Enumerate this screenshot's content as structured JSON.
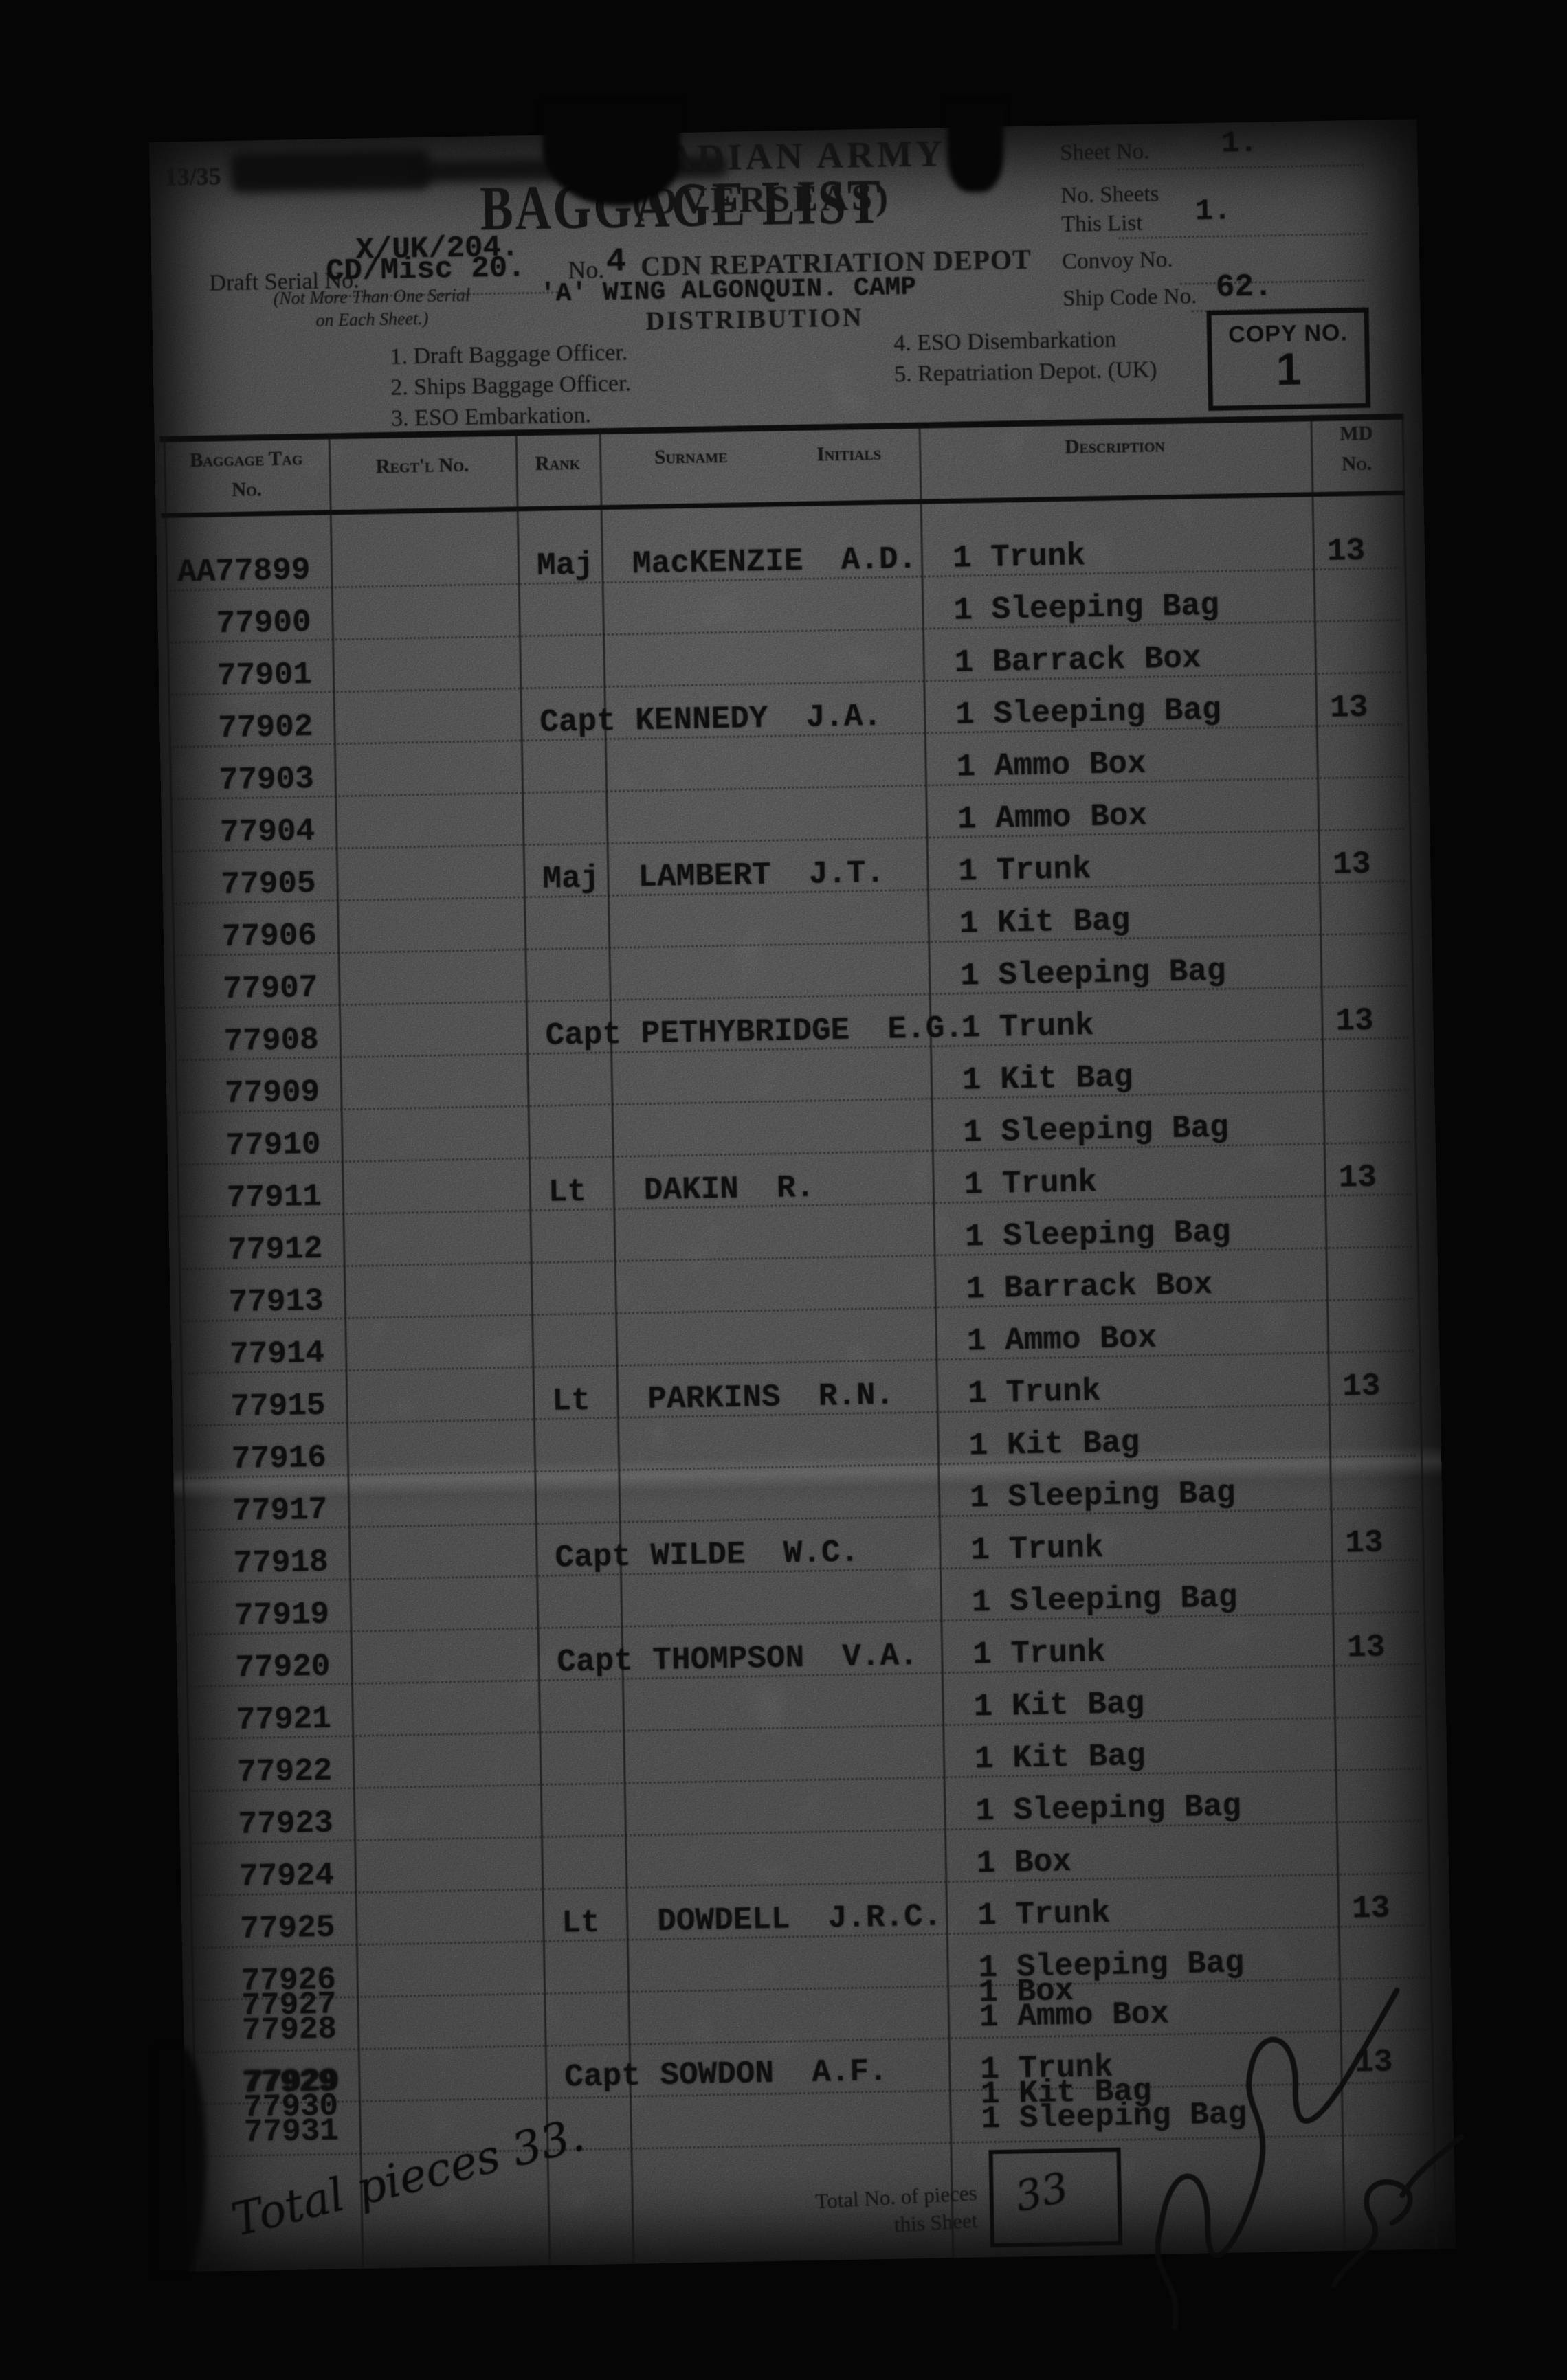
{
  "page": {
    "scan_label": "13/35",
    "colors": {
      "paper": "#8e8e8e",
      "ink": "#111111",
      "background": "#050505"
    },
    "header": {
      "army_title": "CANADIAN ARMY (OVERSEAS)",
      "form_title": "BAGGAGE LIST",
      "file_ref": "X/UK/204.",
      "draft_serial_label": "Draft Serial No.",
      "draft_serial_value": "CD/Misc 20.",
      "serial_note_1": "(Not More Than One Serial",
      "serial_note_2": "on Each Sheet.)",
      "unit_no_label": "No.",
      "unit_no_value": "4",
      "unit_name": "CDN REPATRIATION DEPOT",
      "unit_wing": "'A' WING ALGONQUIN. CAMP",
      "distribution_heading": "DISTRIBUTION",
      "sheet_no_label": "Sheet No.",
      "sheet_no_value": "1.",
      "no_sheets_label_1": "No. Sheets",
      "no_sheets_label_2": "This List",
      "no_sheets_value": "1.",
      "convoy_label": "Convoy No.",
      "ship_code_label": "Ship Code No.",
      "ship_code_value": "62.",
      "copy_no_label": "COPY NO.",
      "copy_no_value": "1",
      "distribution_left": [
        "1.  Draft Baggage Officer.",
        "2.  Ships Baggage Officer.",
        "3.  ESO Embarkation."
      ],
      "distribution_right": [
        "4.  ESO Disembarkation",
        "5.  Repatriation Depot. (UK)"
      ]
    },
    "table": {
      "col_baggage_1": "Baggage Tag",
      "col_baggage_2": "No.",
      "col_regtl": "Regt'l No.",
      "col_rank": "Rank",
      "col_surname": "Surname",
      "col_initials": "Initials",
      "col_description": "Description",
      "col_md_1": "MD",
      "col_md_2": "No.",
      "rows": [
        {
          "tag": "AA77899",
          "rank": "Maj",
          "surname": "MacKENZIE",
          "initials": "A.D.",
          "desc": "1 Trunk",
          "md": "13"
        },
        {
          "tag": "77900",
          "desc": "1 Sleeping Bag"
        },
        {
          "tag": "77901",
          "desc": "1 Barrack Box"
        },
        {
          "tag": "77902",
          "rank": "Capt",
          "surname": "KENNEDY",
          "initials": "J.A.",
          "desc": "1 Sleeping Bag",
          "md": "13"
        },
        {
          "tag": "77903",
          "desc": "1 Ammo Box"
        },
        {
          "tag": "77904",
          "desc": "1 Ammo Box"
        },
        {
          "tag": "77905",
          "rank": "Maj",
          "surname": "LAMBERT",
          "initials": "J.T.",
          "desc": "1 Trunk",
          "md": "13"
        },
        {
          "tag": "77906",
          "desc": "1 Kit Bag"
        },
        {
          "tag": "77907",
          "desc": "1 Sleeping Bag"
        },
        {
          "tag": "77908",
          "rank": "Capt",
          "surname": "PETHYBRIDGE",
          "initials": "E.G.",
          "desc": "1 Trunk",
          "md": "13"
        },
        {
          "tag": "77909",
          "desc": "1 Kit Bag"
        },
        {
          "tag": "77910",
          "desc": "1 Sleeping Bag"
        },
        {
          "tag": "77911",
          "rank": "Lt",
          "surname": "DAKIN",
          "initials": "R.",
          "desc": "1 Trunk",
          "md": "13"
        },
        {
          "tag": "77912",
          "desc": "1 Sleeping Bag"
        },
        {
          "tag": "77913",
          "desc": "1 Barrack Box"
        },
        {
          "tag": "77914",
          "desc": "1 Ammo Box"
        },
        {
          "tag": "77915",
          "rank": "Lt",
          "surname": "PARKINS",
          "initials": "R.N.",
          "desc": "1 Trunk",
          "md": "13"
        },
        {
          "tag": "77916",
          "desc": "1 Kit Bag"
        },
        {
          "tag": "77917",
          "desc": "1 Sleeping Bag"
        },
        {
          "tag": "77918",
          "rank": "Capt",
          "surname": "WILDE",
          "initials": "W.C.",
          "desc": "1 Trunk",
          "md": "13"
        },
        {
          "tag": "77919",
          "desc": "1 Sleeping Bag"
        },
        {
          "tag": "77920",
          "rank": "Capt",
          "surname": "THOMPSON",
          "initials": "V.A.",
          "desc": "1 Trunk",
          "md": "13"
        },
        {
          "tag": "77921",
          "desc": "1 Kit Bag"
        },
        {
          "tag": "77922",
          "desc": "1 Kit Bag"
        },
        {
          "tag": "77923",
          "desc": "1 Sleeping Bag"
        },
        {
          "tag": "77924",
          "desc": "1 Box"
        },
        {
          "tag": "77925",
          "rank": "Lt",
          "surname": "DOWDELL",
          "initials": "J.R.C.",
          "desc": "1 Trunk",
          "md": "13"
        },
        {
          "tag": "77926",
          "desc": "1 Sleeping Bag"
        },
        {
          "tag": "77927",
          "desc": "1 Box",
          "tight": true
        },
        {
          "tag": "77928",
          "desc": "1 Ammo Box",
          "tight": true
        },
        {
          "tag": "77929",
          "rank": "Capt",
          "surname": "SOWDON",
          "initials": "A.F.",
          "desc": "1 Trunk",
          "md": "13",
          "overtyped": true
        },
        {
          "tag": "77930",
          "desc": "1 Kit Bag",
          "tight": true
        },
        {
          "tag": "77931",
          "desc": "1 Sleeping Bag",
          "tight": true
        }
      ]
    },
    "footer": {
      "handwritten_total": "Total pieces 33.",
      "total_label_1": "Total No. of pieces",
      "total_label_2": "this Sheet",
      "total_value": "33",
      "signature_text": "J Kennedy Capt"
    }
  }
}
